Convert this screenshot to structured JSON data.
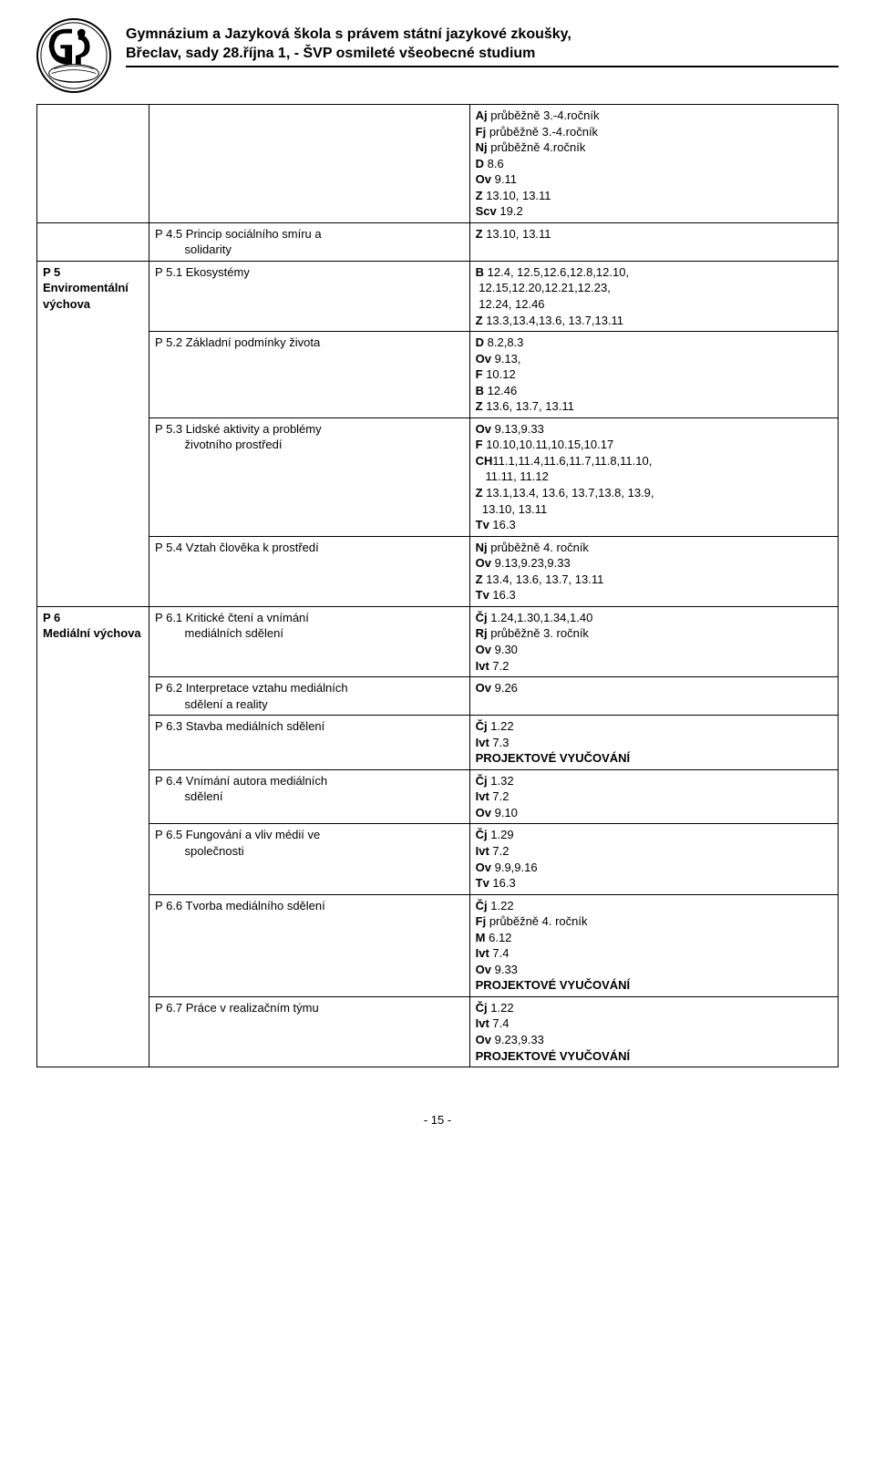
{
  "header": {
    "line1": "Gymnázium a Jazyková škola s právem státní jazykové zkoušky,",
    "line2": "Břeclav, sady 28.října 1,  -  ŠVP osmileté všeobecné studium"
  },
  "rows": [
    {
      "c1": "",
      "c2": "",
      "c3": "<b>Aj</b> průběžně 3.-4.ročník\n<b>Fj</b> průběžně 3.-4.ročník\n<b>Nj</b> průběžně 4.ročník\n<b>D</b> 8.6\n<b>Ov</b> 9.11\n<b>Z</b> 13.10, 13.11\n<b>Scv</b> 19.2"
    },
    {
      "c1": "",
      "c2": "P 4.5 Princip sociálního smíru a\n         solidarity",
      "c3": "<b>Z</b> 13.10, 13.11"
    },
    {
      "c1": "<b>P 5</b>\n<b>Enviromentální</b>\n<b>výchova</b>",
      "c2": "P 5.1 Ekosystémy",
      "c3": "<b>B</b> 12.4, 12.5,12.6,12.8,12.10,\n 12.15,12.20,12.21,12.23,\n 12.24, 12.46\n<b>Z</b> 13.3,13.4,13.6, 13.7,13.11",
      "rowspan1": 4
    },
    {
      "c2": "P 5.2 Základní podmínky života",
      "c3": "<b>D</b> 8.2,8.3\n<b>Ov</b> 9.13,\n<b>F</b> 10.12\n<b>B</b> 12.46\n<b>Z</b> 13.6, 13.7, 13.11"
    },
    {
      "c2": "P 5.3 Lidské aktivity a problémy\n         životního prostředí",
      "c3": "<b>Ov</b> 9.13,9.33\n<b>F</b> 10.10,10.11,10.15,10.17\n<b>CH</b>11.1,11.4,11.6,11.7,11.8,11.10,\n   11.11, 11.12\n<b>Z</b> 13.1,13.4, 13.6, 13.7,13.8, 13.9,\n  13.10, 13.11\n<b>Tv</b> 16.3"
    },
    {
      "c2": "P 5.4 Vztah člověka k prostředí",
      "c3": "<b>Nj</b> průběžně 4. ročník\n<b>Ov</b> 9.13,9.23,9.33\n<b>Z</b> 13.4, 13.6, 13.7, 13.11\n<b>Tv</b> 16.3"
    },
    {
      "c1": "<b>P 6</b>\n<b>Mediální výchova</b>",
      "c2": "P 6.1 Kritické čtení a vnímání\n         mediálních sdělení",
      "c3": "<b>Čj</b> 1.24,1.30,1.34,1.40\n<b>Rj</b> průběžně 3. ročník\n<b>Ov</b> 9.30\n<b>Ivt</b> 7.2",
      "rowspan1": 7
    },
    {
      "c2": "P 6.2 Interpretace vztahu mediálních\n         sdělení a reality",
      "c3": "<b>Ov</b> 9.26"
    },
    {
      "c2": "P 6.3 Stavba mediálních sdělení",
      "c3": "<b>Čj</b> 1.22\n<b>Ivt</b> 7.3\n<b>PROJEKTOVÉ VYUČOVÁNÍ</b>"
    },
    {
      "c2": "P 6.4 Vnímání autora mediálních\n         sdělení",
      "c3": "<b>Čj</b> 1.32\n<b>Ivt</b> 7.2\n<b>Ov</b> 9.10\n"
    },
    {
      "c2": "P 6.5 Fungování a vliv médií ve\n         společnosti",
      "c3": "<b>Čj</b> 1.29\n<b>Ivt</b> 7.2\n<b>Ov</b> 9.9,9.16\n<b>Tv</b> 16.3"
    },
    {
      "c2": "P 6.6 Tvorba mediálního sdělení",
      "c3": "<b>Čj</b> 1.22\n<b>Fj</b> průběžně 4. ročník\n<b>M</b> 6.12\n<b>Ivt</b> 7.4\n<b>Ov</b> 9.33\n<b>PROJEKTOVÉ VYUČOVÁNÍ</b>"
    },
    {
      "c2": "P 6.7 Práce v realizačním týmu",
      "c3": "<b>Čj</b> 1.22\n<b>Ivt</b> 7.4\n<b>Ov</b> 9.23,9.33\n<b>PROJEKTOVÉ VYUČOVÁNÍ</b>"
    }
  ],
  "pageNumber": "- 15 -"
}
